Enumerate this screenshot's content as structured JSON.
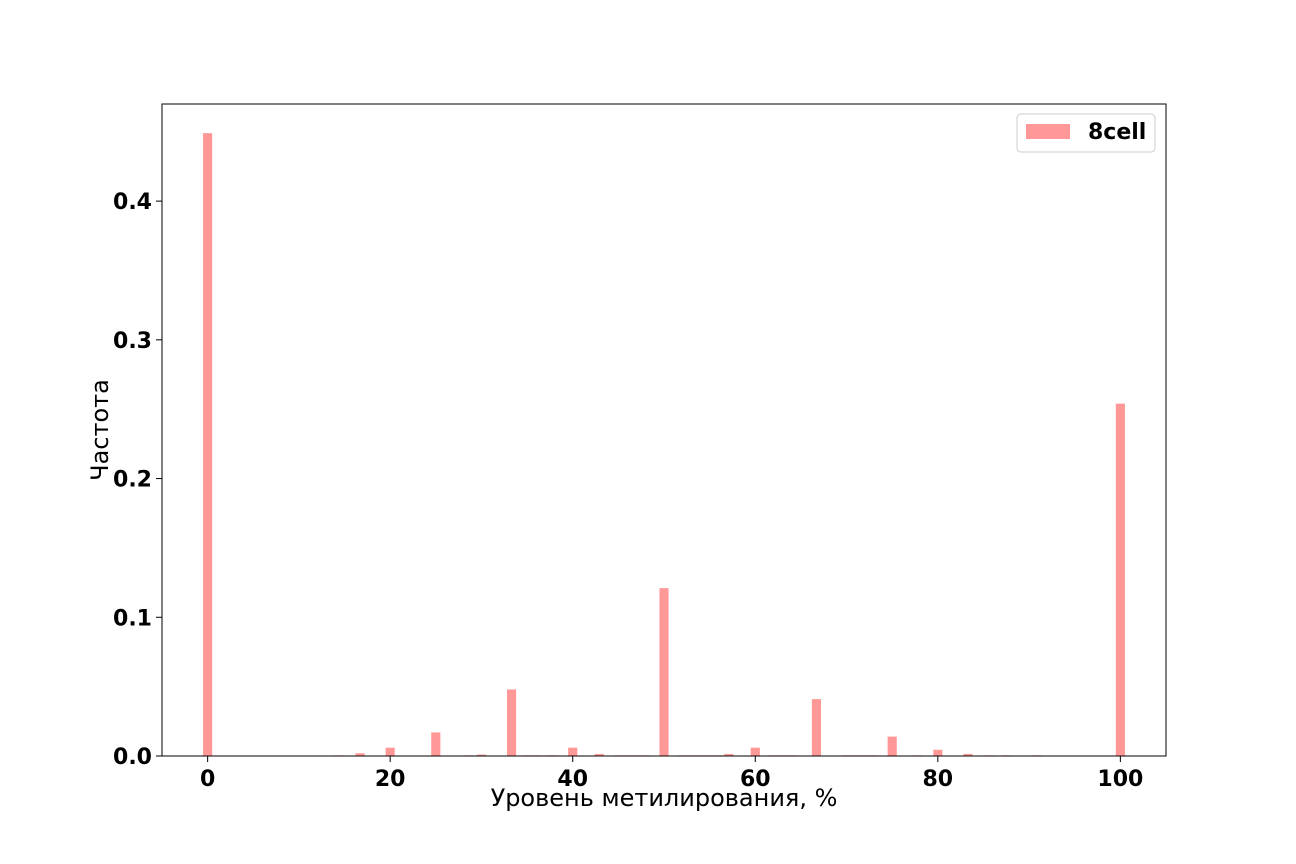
{
  "chart_data": {
    "type": "bar",
    "title": "",
    "xlabel": "Уровень метилирования, %",
    "ylabel": "Частота",
    "xlim": [
      -5,
      105
    ],
    "ylim": [
      0,
      0.47
    ],
    "xticks": [
      0,
      20,
      40,
      60,
      80,
      100
    ],
    "xtick_labels": [
      "0",
      "20",
      "40",
      "60",
      "80",
      "100"
    ],
    "yticks": [
      0.0,
      0.1,
      0.2,
      0.3,
      0.4
    ],
    "ytick_labels": [
      "0.0",
      "0.1",
      "0.2",
      "0.3",
      "0.4"
    ],
    "grid": false,
    "legend_position": "top-right",
    "bar_width": 1.0,
    "series": [
      {
        "name": "8cell",
        "color": "#ff9896",
        "x": [
          0,
          14.3,
          16.7,
          20,
          25,
          28.6,
          30,
          33.3,
          35,
          36,
          37.5,
          38,
          40,
          42.9,
          45,
          46,
          47,
          48,
          50,
          52,
          53,
          54,
          55,
          56,
          57.1,
          60,
          62,
          63,
          64,
          66.7,
          70,
          71,
          72,
          73,
          75,
          77.8,
          80,
          83.3,
          85.7,
          87.5,
          90.9,
          100
        ],
        "values": [
          0.449,
          0.0005,
          0.002,
          0.006,
          0.017,
          0.0005,
          0.001,
          0.048,
          0.0005,
          0.0005,
          0.0005,
          0.0005,
          0.006,
          0.0015,
          0.0005,
          0.0005,
          0.0005,
          0.0005,
          0.121,
          0.0005,
          0.0005,
          0.0005,
          0.0005,
          0.0005,
          0.0015,
          0.006,
          0.0005,
          0.0005,
          0.0005,
          0.041,
          0.0005,
          0.0005,
          0.0005,
          0.0005,
          0.014,
          0.0005,
          0.0045,
          0.0015,
          0.0005,
          0.0005,
          0.0005,
          0.254
        ]
      }
    ]
  }
}
